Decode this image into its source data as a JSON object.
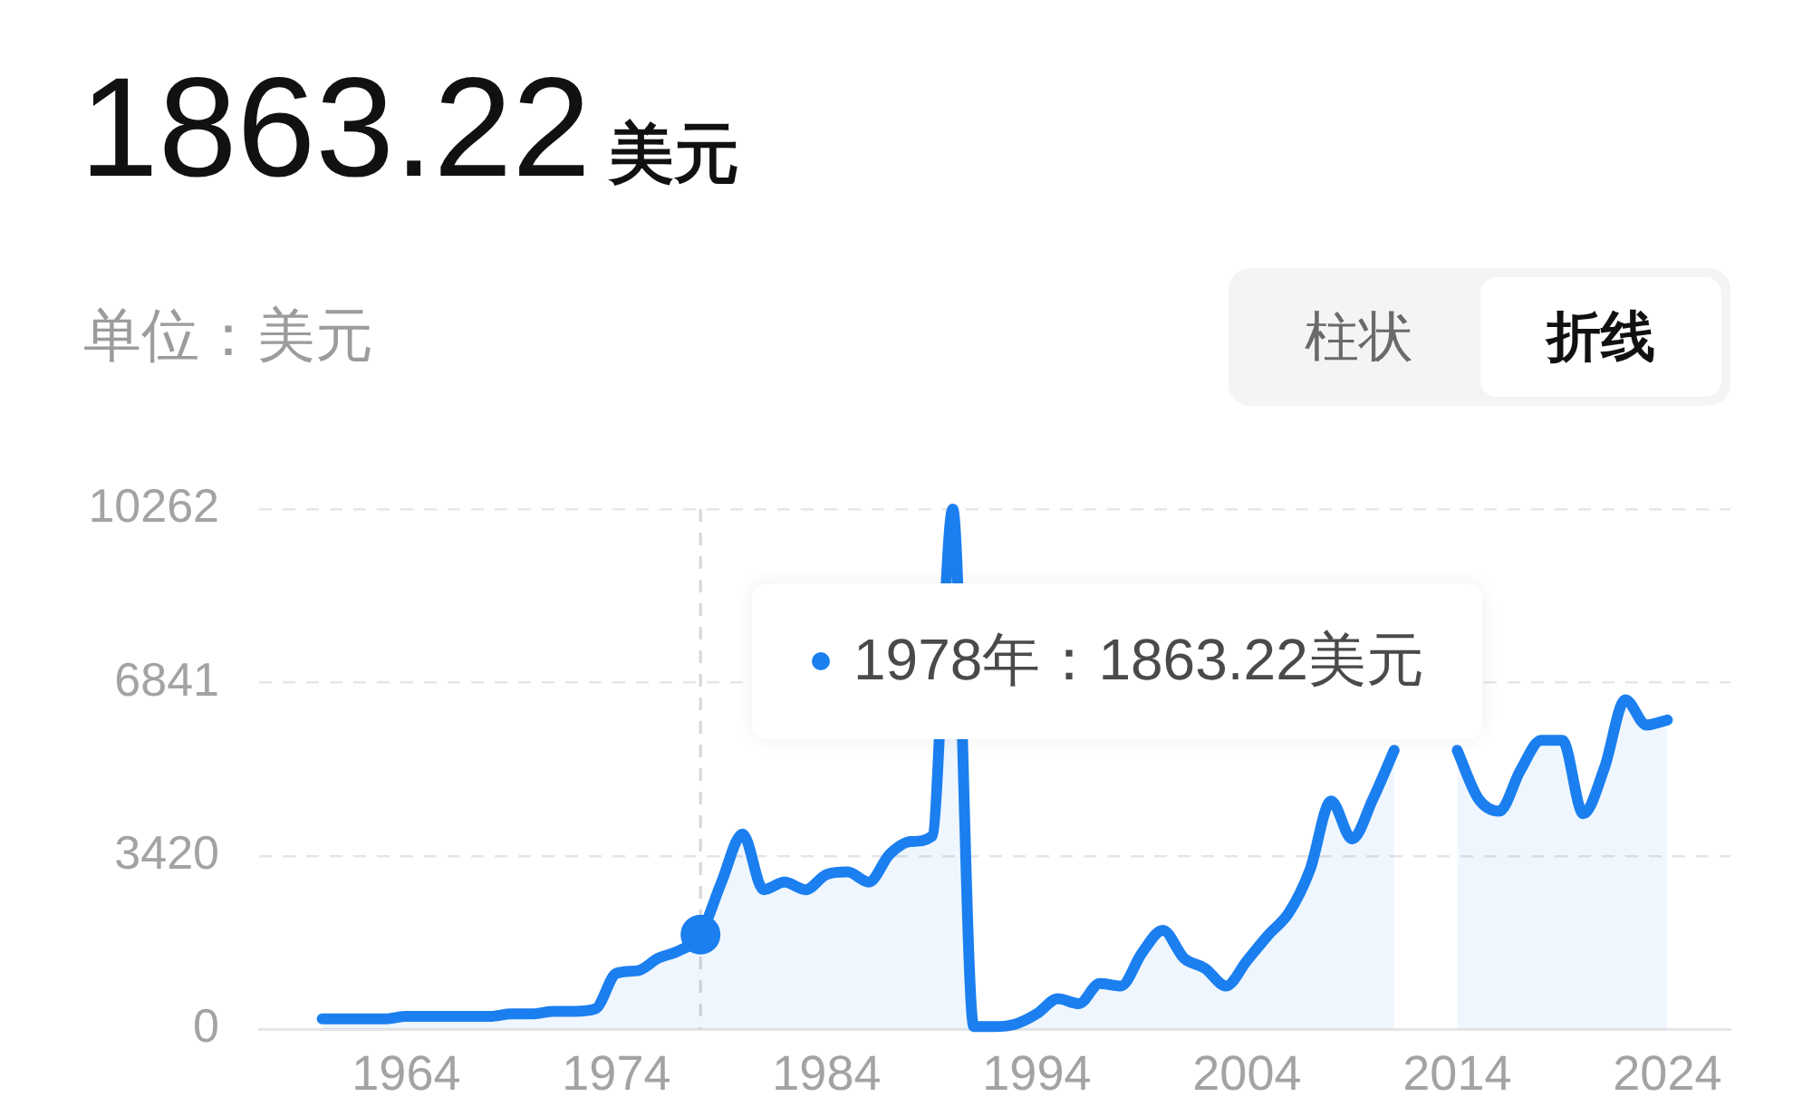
{
  "chart_data": {
    "type": "area",
    "title": "1863.22",
    "subtitle": "美元",
    "ylabel": "单位：美元",
    "annotations": [
      "柱状",
      "折线",
      "1978年：1863.22美元"
    ],
    "x": [
      1960,
      1961,
      1962,
      1963,
      1964,
      1965,
      1966,
      1967,
      1968,
      1969,
      1970,
      1971,
      1972,
      1973,
      1974,
      1975,
      1976,
      1977,
      1978,
      1979,
      1980,
      1981,
      1982,
      1983,
      1984,
      1985,
      1986,
      1987,
      1988,
      1989,
      1990,
      1991,
      1992,
      1993,
      1994,
      1995,
      1996,
      1997,
      1998,
      1999,
      2000,
      2001,
      2002,
      2003,
      2004,
      2005,
      2006,
      2007,
      2008,
      2009,
      2010,
      2011,
      2012,
      2013,
      2014,
      2015,
      2016,
      2017,
      2018,
      2019,
      2020,
      2021,
      2022,
      2023,
      2024
    ],
    "series": [
      {
        "type": "area",
        "color": "#1b7ff0",
        "values": [
          200,
          200,
          200,
          200,
          250,
          250,
          250,
          250,
          250,
          300,
          300,
          350,
          350,
          400,
          1100,
          1150,
          1400,
          1550,
          1863.22,
          2900,
          3850,
          2750,
          2900,
          2750,
          3050,
          3100,
          2900,
          3450,
          3700,
          3800,
          10262,
          50,
          50,
          100,
          300,
          600,
          500,
          900,
          850,
          1500,
          1950,
          1400,
          1200,
          850,
          1350,
          1850,
          2300,
          3150,
          4500,
          3750,
          4550,
          5500,
          null,
          null,
          5500,
          4550,
          4300,
          5100,
          5700,
          5700,
          4250,
          5150,
          6500,
          6000,
          6100
        ]
      },
      {
        "type": "scatter",
        "color": "#1b7ff0",
        "x": [
          1978
        ],
        "values": [
          1863.22
        ]
      }
    ],
    "xlim": [
      1957,
      2027
    ],
    "xticks": [
      1964,
      1974,
      1984,
      1994,
      2004,
      2014,
      2024
    ],
    "ylim": [
      0,
      10262
    ],
    "yticks": [
      0,
      3420,
      6841,
      10262
    ],
    "grid": "y",
    "ref_lines": [
      {
        "axis": "x",
        "value": 1978,
        "line_style": "dashed"
      }
    ]
  }
}
